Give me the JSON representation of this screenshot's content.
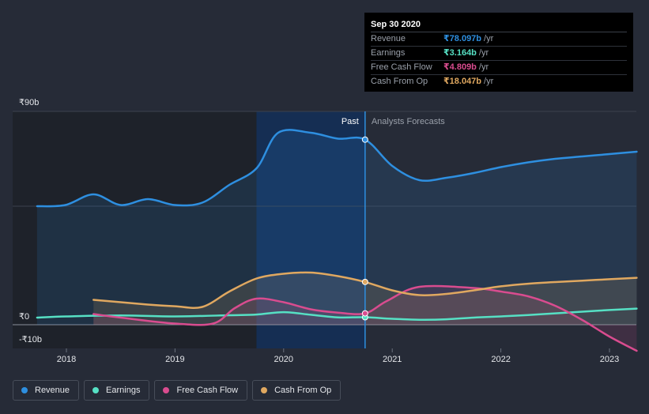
{
  "chart_data": {
    "type": "line",
    "currency": "₹",
    "y_ticks": [
      {
        "value": 90,
        "label": "₹90b"
      },
      {
        "value": 0,
        "label": "₹0"
      },
      {
        "value": -10,
        "label": "-₹10b"
      }
    ],
    "ylim": [
      -10,
      90
    ],
    "xlim": [
      2017.5,
      2023.25
    ],
    "x_ticks": [
      {
        "value": 2018,
        "label": "2018"
      },
      {
        "value": 2019,
        "label": "2019"
      },
      {
        "value": 2020,
        "label": "2020"
      },
      {
        "value": 2021,
        "label": "2021"
      },
      {
        "value": 2022,
        "label": "2022"
      },
      {
        "value": 2023,
        "label": "2023"
      }
    ],
    "past_start": 2019.75,
    "divider": 2020.75,
    "past_label": "Past",
    "forecast_label": "Analysts Forecasts",
    "series": [
      {
        "name": "Revenue",
        "color": "#2e8fe0",
        "fill": true,
        "points": [
          [
            2017.73,
            50
          ],
          [
            2017.99,
            50.5
          ],
          [
            2018.25,
            55
          ],
          [
            2018.5,
            50.5
          ],
          [
            2018.75,
            53
          ],
          [
            2019.0,
            50.5
          ],
          [
            2019.25,
            51.5
          ],
          [
            2019.5,
            59
          ],
          [
            2019.75,
            66
          ],
          [
            2019.95,
            81
          ],
          [
            2020.25,
            81
          ],
          [
            2020.5,
            78.5
          ],
          [
            2020.75,
            78.1
          ],
          [
            2021.0,
            67
          ],
          [
            2021.25,
            61
          ],
          [
            2021.5,
            62
          ],
          [
            2021.75,
            64
          ],
          [
            2022.0,
            66.5
          ],
          [
            2022.25,
            68.5
          ],
          [
            2022.5,
            70
          ],
          [
            2022.75,
            71
          ],
          [
            2023.0,
            72
          ],
          [
            2023.25,
            73
          ]
        ]
      },
      {
        "name": "Earnings",
        "color": "#56e0c4",
        "fill": false,
        "points": [
          [
            2017.73,
            3
          ],
          [
            2018.0,
            3.5
          ],
          [
            2018.5,
            3.9
          ],
          [
            2019.0,
            3.5
          ],
          [
            2019.5,
            4
          ],
          [
            2019.75,
            4.3
          ],
          [
            2020.0,
            5.3
          ],
          [
            2020.25,
            4.2
          ],
          [
            2020.5,
            3.1
          ],
          [
            2020.75,
            3.16
          ],
          [
            2021.0,
            2.5
          ],
          [
            2021.25,
            2.1
          ],
          [
            2021.5,
            2.3
          ],
          [
            2021.75,
            3
          ],
          [
            2022.0,
            3.5
          ],
          [
            2022.25,
            4.1
          ],
          [
            2022.5,
            4.8
          ],
          [
            2022.75,
            5.5
          ],
          [
            2023.0,
            6.2
          ],
          [
            2023.25,
            6.8
          ]
        ]
      },
      {
        "name": "Free Cash Flow",
        "color": "#d94c8f",
        "fill": true,
        "points": [
          [
            2018.25,
            4.5
          ],
          [
            2018.5,
            3
          ],
          [
            2019.0,
            0.5
          ],
          [
            2019.35,
            0.5
          ],
          [
            2019.55,
            7
          ],
          [
            2019.75,
            11
          ],
          [
            2020.0,
            9.5
          ],
          [
            2020.25,
            6.5
          ],
          [
            2020.5,
            5.1
          ],
          [
            2020.75,
            4.8
          ],
          [
            2020.95,
            10
          ],
          [
            2021.25,
            16
          ],
          [
            2021.75,
            15.5
          ],
          [
            2022.0,
            14
          ],
          [
            2022.25,
            12
          ],
          [
            2022.5,
            8
          ],
          [
            2022.75,
            2
          ],
          [
            2023.0,
            -5
          ],
          [
            2023.25,
            -11
          ]
        ]
      },
      {
        "name": "Cash From Op",
        "color": "#e0a860",
        "fill": true,
        "points": [
          [
            2018.25,
            10.5
          ],
          [
            2018.5,
            9.5
          ],
          [
            2018.75,
            8.5
          ],
          [
            2019.0,
            7.8
          ],
          [
            2019.25,
            7.5
          ],
          [
            2019.5,
            14
          ],
          [
            2019.75,
            19.5
          ],
          [
            2020.0,
            21.5
          ],
          [
            2020.25,
            22
          ],
          [
            2020.5,
            20.5
          ],
          [
            2020.75,
            18.05
          ],
          [
            2021.0,
            14.5
          ],
          [
            2021.25,
            12.5
          ],
          [
            2021.5,
            13
          ],
          [
            2021.75,
            14.5
          ],
          [
            2022.0,
            16.2
          ],
          [
            2022.25,
            17.3
          ],
          [
            2022.5,
            18
          ],
          [
            2022.75,
            18.6
          ],
          [
            2023.0,
            19.2
          ],
          [
            2023.25,
            19.8
          ]
        ]
      }
    ]
  },
  "tooltip": {
    "date": "Sep 30 2020",
    "rows": [
      {
        "label": "Revenue",
        "value": "₹78.097b",
        "unit": "/yr",
        "color": "#2e8fe0"
      },
      {
        "label": "Earnings",
        "value": "₹3.164b",
        "unit": "/yr",
        "color": "#56e0c4"
      },
      {
        "label": "Free Cash Flow",
        "value": "₹4.809b",
        "unit": "/yr",
        "color": "#d94c8f"
      },
      {
        "label": "Cash From Op",
        "value": "₹18.047b",
        "unit": "/yr",
        "color": "#e0a860"
      }
    ]
  },
  "legend": [
    {
      "label": "Revenue",
      "color": "#2e8fe0"
    },
    {
      "label": "Earnings",
      "color": "#56e0c4"
    },
    {
      "label": "Free Cash Flow",
      "color": "#d94c8f"
    },
    {
      "label": "Cash From Op",
      "color": "#e0a860"
    }
  ]
}
